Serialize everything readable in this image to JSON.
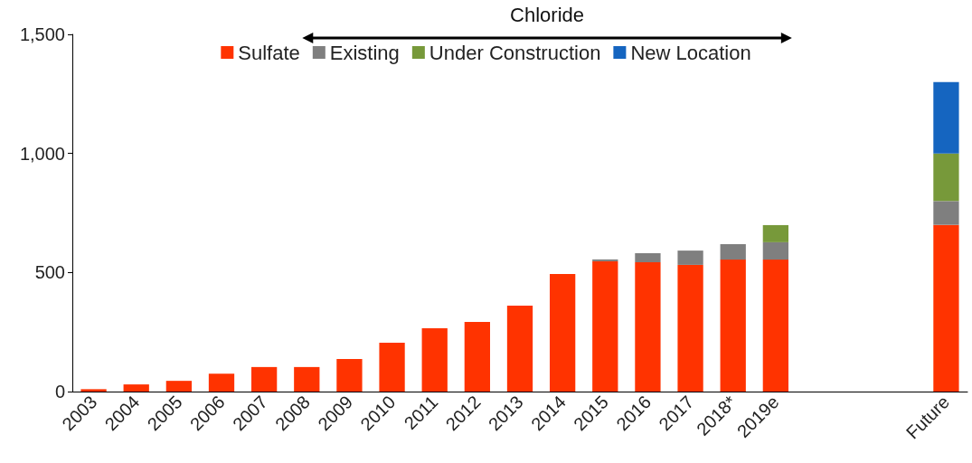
{
  "chart_data": {
    "type": "bar",
    "stacked": true,
    "categories": [
      "2003",
      "2004",
      "2005",
      "2006",
      "2007",
      "2008",
      "2009",
      "2010",
      "2011",
      "2012",
      "2013",
      "2014",
      "2015",
      "2016",
      "2017",
      "2018*",
      "2019e",
      null,
      null,
      null,
      "Future"
    ],
    "series": [
      {
        "name": "Sulfate",
        "color": "#ff3300",
        "values": [
          10,
          30,
          45,
          75,
          103,
          103,
          137,
          205,
          266,
          292,
          361,
          494,
          547,
          543,
          532,
          554,
          554,
          null,
          null,
          null,
          700
        ]
      },
      {
        "name": "Existing",
        "color": "#7f7f7f",
        "values": [
          null,
          null,
          null,
          null,
          null,
          null,
          null,
          null,
          null,
          null,
          null,
          null,
          8,
          38,
          60,
          65,
          73,
          null,
          null,
          null,
          100
        ]
      },
      {
        "name": "Under Construction",
        "color": "#77993a",
        "values": [
          null,
          null,
          null,
          null,
          null,
          null,
          null,
          null,
          null,
          null,
          null,
          null,
          null,
          null,
          null,
          null,
          72,
          null,
          null,
          null,
          200
        ]
      },
      {
        "name": "New Location",
        "color": "#1565c0",
        "values": [
          null,
          null,
          null,
          null,
          null,
          null,
          null,
          null,
          null,
          null,
          null,
          null,
          null,
          null,
          null,
          null,
          null,
          null,
          null,
          null,
          300
        ]
      }
    ],
    "ylim": [
      0,
      1500
    ],
    "yticks": [
      0,
      500,
      {
        "value": 1000,
        "label": "1,000"
      },
      {
        "value": 1500,
        "label": "1,500"
      }
    ],
    "grid": false,
    "legend": "top",
    "annotations": [
      "Chloride"
    ]
  }
}
